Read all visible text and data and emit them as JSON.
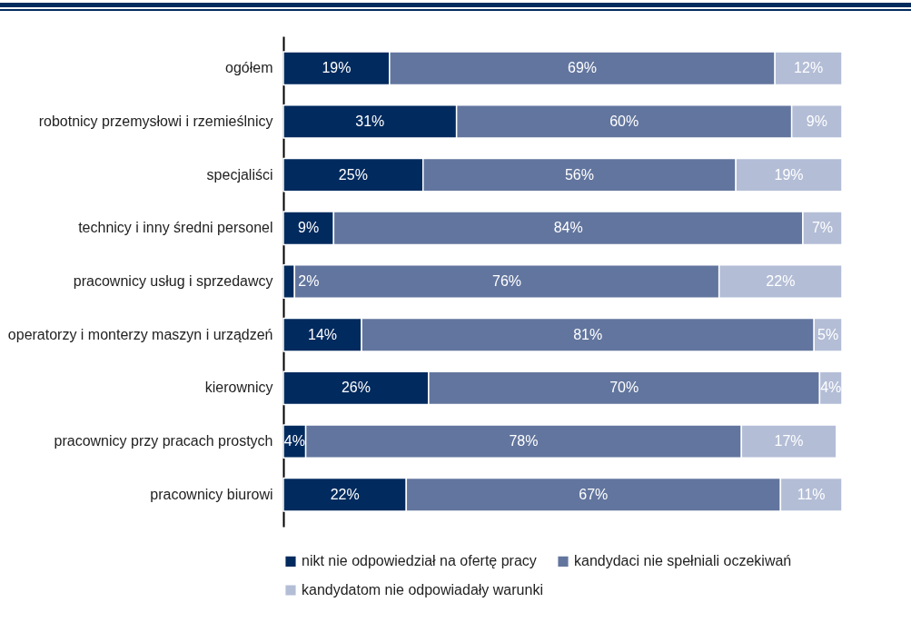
{
  "chart_data": {
    "type": "bar",
    "orientation": "horizontal",
    "stacked": true,
    "legend": "bottom",
    "xlim": [
      0,
      100
    ],
    "categories": [
      "ogółem",
      "robotnicy przemysłowi i rzemieślnicy",
      "specjaliści",
      "technicy i inny średni personel",
      "pracownicy usług i sprzedawcy",
      "operatorzy i monterzy maszyn i urządzeń",
      "kierownicy",
      "pracownicy przy pracach prostych",
      "pracownicy biurowi"
    ],
    "series": [
      {
        "name": "nikt nie odpowiedział na ofertę pracy",
        "color": "#012a5e",
        "values": [
          19,
          31,
          25,
          9,
          2,
          14,
          26,
          4,
          22
        ],
        "value_labels": [
          "19%",
          "31%",
          "25%",
          "9%",
          "2%",
          "14%",
          "26%",
          "4%",
          "22%"
        ]
      },
      {
        "name": "kandydaci nie spełniali oczekiwań",
        "color": "#62759e",
        "values": [
          69,
          60,
          56,
          84,
          76,
          81,
          70,
          78,
          67
        ],
        "value_labels": [
          "69%",
          "60%",
          "56%",
          "84%",
          "76%",
          "81%",
          "70%",
          "78%",
          "67%"
        ]
      },
      {
        "name": "kandydatom nie odpowiadały warunki",
        "color": "#b3bdd6",
        "values": [
          12,
          9,
          19,
          7,
          22,
          5,
          4,
          17,
          11
        ],
        "value_labels": [
          "12%",
          "9%",
          "19%",
          "7%",
          "22%",
          "5%",
          "4%",
          "17%",
          "11%"
        ]
      }
    ]
  }
}
